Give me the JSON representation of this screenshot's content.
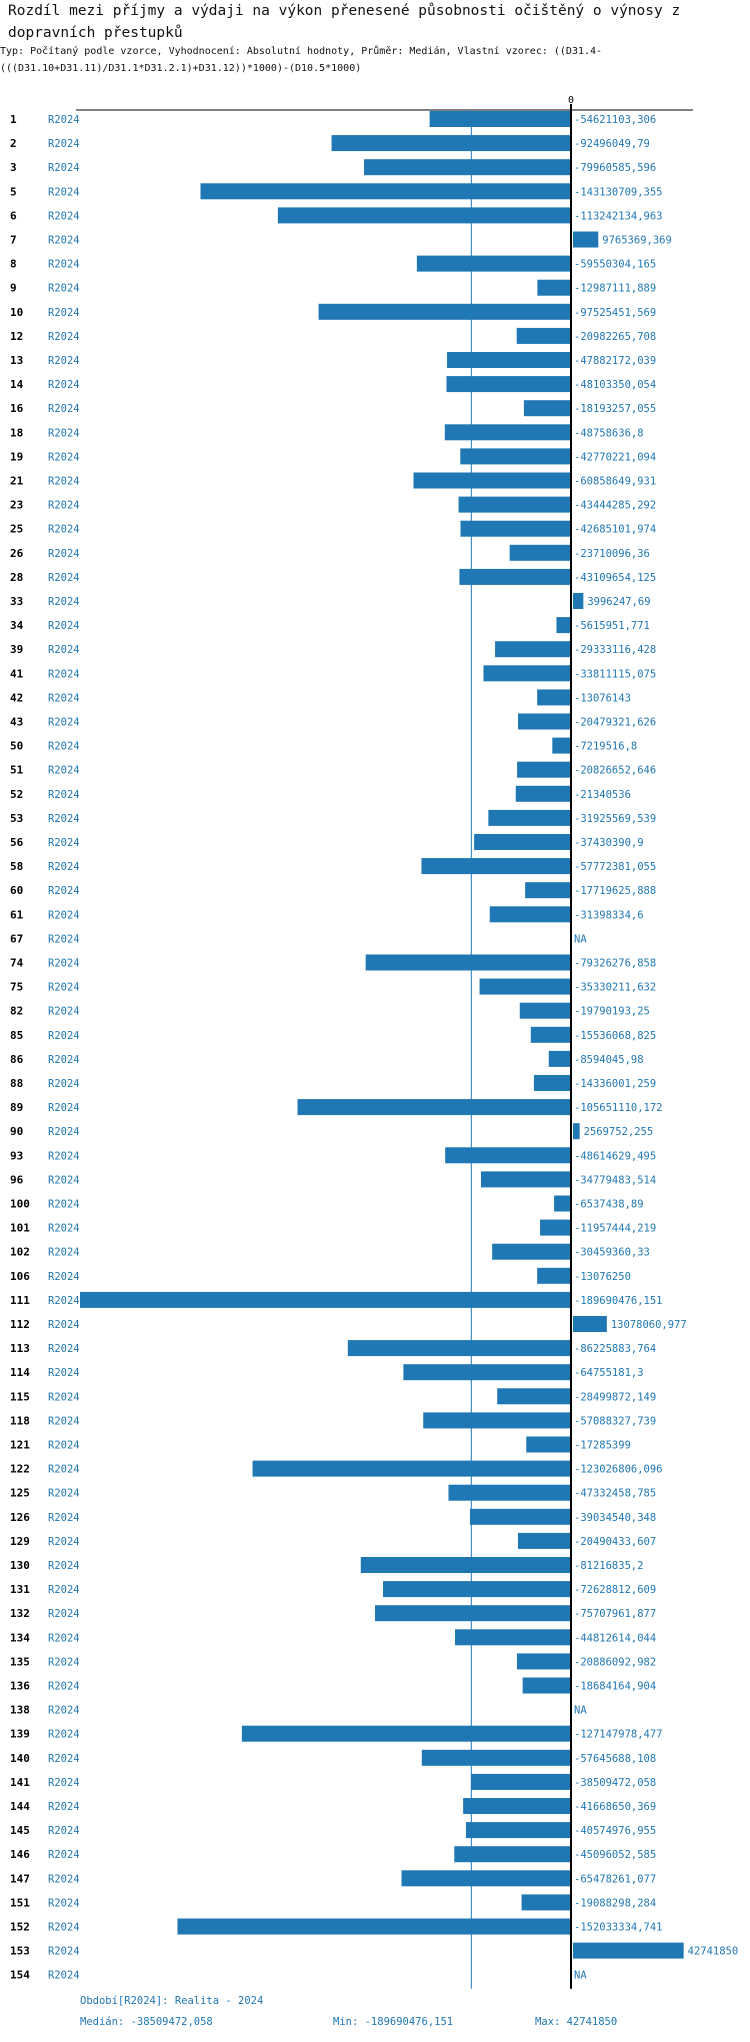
{
  "title": "Rozdíl mezi příjmy a výdaji na výkon přenesené působnosti očištěný o výnosy z dopravních přestupků",
  "subtitle": "Typ: Počítaný podle vzorce, Vyhodnocení: Absolutní hodnoty, Průměr: Medián, Vlastní vzorec: ((D31.4-(((D31.10+D31.11)/D31.1*D31.2.1)+D31.12))*1000)-(D10.5*1000)",
  "colors": {
    "bar": "#1f77b4",
    "text": "#1f77b4",
    "axis": "#000000"
  },
  "chart_data": {
    "type": "bar",
    "orientation": "horizontal",
    "zero_label": "0",
    "median_line": -38509472.058,
    "xlim": [
      -189690476.151,
      42741850
    ],
    "rows": [
      {
        "id": "1",
        "period": "R2024",
        "value": -54621103.306,
        "label": "-54621103,306"
      },
      {
        "id": "2",
        "period": "R2024",
        "value": -92496049.79,
        "label": "-92496049,79"
      },
      {
        "id": "3",
        "period": "R2024",
        "value": -79960585.596,
        "label": "-79960585,596"
      },
      {
        "id": "5",
        "period": "R2024",
        "value": -143130709.355,
        "label": "-143130709,355"
      },
      {
        "id": "6",
        "period": "R2024",
        "value": -113242134.963,
        "label": "-113242134,963"
      },
      {
        "id": "7",
        "period": "R2024",
        "value": 9765369.369,
        "label": "9765369,369"
      },
      {
        "id": "8",
        "period": "R2024",
        "value": -59550304.165,
        "label": "-59550304,165"
      },
      {
        "id": "9",
        "period": "R2024",
        "value": -12987111.889,
        "label": "-12987111,889"
      },
      {
        "id": "10",
        "period": "R2024",
        "value": -97525451.569,
        "label": "-97525451,569"
      },
      {
        "id": "12",
        "period": "R2024",
        "value": -20982265.708,
        "label": "-20982265,708"
      },
      {
        "id": "13",
        "period": "R2024",
        "value": -47882172.039,
        "label": "-47882172,039"
      },
      {
        "id": "14",
        "period": "R2024",
        "value": -48103350.054,
        "label": "-48103350,054"
      },
      {
        "id": "16",
        "period": "R2024",
        "value": -18193257.055,
        "label": "-18193257,055"
      },
      {
        "id": "18",
        "period": "R2024",
        "value": -48758636.8,
        "label": "-48758636,8"
      },
      {
        "id": "19",
        "period": "R2024",
        "value": -42770221.094,
        "label": "-42770221,094"
      },
      {
        "id": "21",
        "period": "R2024",
        "value": -60858649.931,
        "label": "-60858649,931"
      },
      {
        "id": "23",
        "period": "R2024",
        "value": -43444285.292,
        "label": "-43444285,292"
      },
      {
        "id": "25",
        "period": "R2024",
        "value": -42685101.974,
        "label": "-42685101,974"
      },
      {
        "id": "26",
        "period": "R2024",
        "value": -23710096.36,
        "label": "-23710096,36"
      },
      {
        "id": "28",
        "period": "R2024",
        "value": -43109654.125,
        "label": "-43109654,125"
      },
      {
        "id": "33",
        "period": "R2024",
        "value": 3996247.69,
        "label": "3996247,69"
      },
      {
        "id": "34",
        "period": "R2024",
        "value": -5615951.771,
        "label": "-5615951,771"
      },
      {
        "id": "39",
        "period": "R2024",
        "value": -29333116.428,
        "label": "-29333116,428"
      },
      {
        "id": "41",
        "period": "R2024",
        "value": -33811115.075,
        "label": "-33811115,075"
      },
      {
        "id": "42",
        "period": "R2024",
        "value": -13076143,
        "label": "-13076143"
      },
      {
        "id": "43",
        "period": "R2024",
        "value": -20479321.626,
        "label": "-20479321,626"
      },
      {
        "id": "50",
        "period": "R2024",
        "value": -7219516.8,
        "label": "-7219516,8"
      },
      {
        "id": "51",
        "period": "R2024",
        "value": -20826652.646,
        "label": "-20826652,646"
      },
      {
        "id": "52",
        "period": "R2024",
        "value": -21340536,
        "label": "-21340536"
      },
      {
        "id": "53",
        "period": "R2024",
        "value": -31925569.539,
        "label": "-31925569,539"
      },
      {
        "id": "56",
        "period": "R2024",
        "value": -37430390.9,
        "label": "-37430390,9"
      },
      {
        "id": "58",
        "period": "R2024",
        "value": -57772381.055,
        "label": "-57772381,055"
      },
      {
        "id": "60",
        "period": "R2024",
        "value": -17719625.888,
        "label": "-17719625,888"
      },
      {
        "id": "61",
        "period": "R2024",
        "value": -31398334.6,
        "label": "-31398334,6"
      },
      {
        "id": "67",
        "period": "R2024",
        "value": null,
        "label": "NA"
      },
      {
        "id": "74",
        "period": "R2024",
        "value": -79326276.858,
        "label": "-79326276,858"
      },
      {
        "id": "75",
        "period": "R2024",
        "value": -35330211.632,
        "label": "-35330211,632"
      },
      {
        "id": "82",
        "period": "R2024",
        "value": -19790193.25,
        "label": "-19790193,25"
      },
      {
        "id": "85",
        "period": "R2024",
        "value": -15536068.825,
        "label": "-15536068,825"
      },
      {
        "id": "86",
        "period": "R2024",
        "value": -8594045.98,
        "label": "-8594045,98"
      },
      {
        "id": "88",
        "period": "R2024",
        "value": -14336001.259,
        "label": "-14336001,259"
      },
      {
        "id": "89",
        "period": "R2024",
        "value": -105651110.172,
        "label": "-105651110,172"
      },
      {
        "id": "90",
        "period": "R2024",
        "value": 2569752.255,
        "label": "2569752,255"
      },
      {
        "id": "93",
        "period": "R2024",
        "value": -48614629.495,
        "label": "-48614629,495"
      },
      {
        "id": "96",
        "period": "R2024",
        "value": -34779483.514,
        "label": "-34779483,514"
      },
      {
        "id": "100",
        "period": "R2024",
        "value": -6537438.89,
        "label": "-6537438,89"
      },
      {
        "id": "101",
        "period": "R2024",
        "value": -11957444.219,
        "label": "-11957444,219"
      },
      {
        "id": "102",
        "period": "R2024",
        "value": -30459360.33,
        "label": "-30459360,33"
      },
      {
        "id": "106",
        "period": "R2024",
        "value": -13076250,
        "label": "-13076250"
      },
      {
        "id": "111",
        "period": "R2024",
        "value": -189690476.151,
        "label": "-189690476,151"
      },
      {
        "id": "112",
        "period": "R2024",
        "value": 13078060.977,
        "label": "13078060,977"
      },
      {
        "id": "113",
        "period": "R2024",
        "value": -86225883.764,
        "label": "-86225883,764"
      },
      {
        "id": "114",
        "period": "R2024",
        "value": -64755181.3,
        "label": "-64755181,3"
      },
      {
        "id": "115",
        "period": "R2024",
        "value": -28499872.149,
        "label": "-28499872,149"
      },
      {
        "id": "118",
        "period": "R2024",
        "value": -57088327.739,
        "label": "-57088327,739"
      },
      {
        "id": "121",
        "period": "R2024",
        "value": -17285399,
        "label": "-17285399"
      },
      {
        "id": "122",
        "period": "R2024",
        "value": -123026806.096,
        "label": "-123026806,096"
      },
      {
        "id": "125",
        "period": "R2024",
        "value": -47332458.785,
        "label": "-47332458,785"
      },
      {
        "id": "126",
        "period": "R2024",
        "value": -39034540.348,
        "label": "-39034540,348"
      },
      {
        "id": "129",
        "period": "R2024",
        "value": -20490433.607,
        "label": "-20490433,607"
      },
      {
        "id": "130",
        "period": "R2024",
        "value": -81216835.2,
        "label": "-81216835,2"
      },
      {
        "id": "131",
        "period": "R2024",
        "value": -72628812.609,
        "label": "-72628812,609"
      },
      {
        "id": "132",
        "period": "R2024",
        "value": -75707961.877,
        "label": "-75707961,877"
      },
      {
        "id": "134",
        "period": "R2024",
        "value": -44812614.044,
        "label": "-44812614,044"
      },
      {
        "id": "135",
        "period": "R2024",
        "value": -20886092.982,
        "label": "-20886092,982"
      },
      {
        "id": "136",
        "period": "R2024",
        "value": -18684164.904,
        "label": "-18684164,904"
      },
      {
        "id": "138",
        "period": "R2024",
        "value": null,
        "label": "NA"
      },
      {
        "id": "139",
        "period": "R2024",
        "value": -127147978.477,
        "label": "-127147978,477"
      },
      {
        "id": "140",
        "period": "R2024",
        "value": -57645688.108,
        "label": "-57645688,108"
      },
      {
        "id": "141",
        "period": "R2024",
        "value": -38509472.058,
        "label": "-38509472,058"
      },
      {
        "id": "144",
        "period": "R2024",
        "value": -41668650.369,
        "label": "-41668650,369"
      },
      {
        "id": "145",
        "period": "R2024",
        "value": -40574976.955,
        "label": "-40574976,955"
      },
      {
        "id": "146",
        "period": "R2024",
        "value": -45096052.585,
        "label": "-45096052,585"
      },
      {
        "id": "147",
        "period": "R2024",
        "value": -65478261.077,
        "label": "-65478261,077"
      },
      {
        "id": "151",
        "period": "R2024",
        "value": -19088298.284,
        "label": "-19088298,284"
      },
      {
        "id": "152",
        "period": "R2024",
        "value": -152033334.741,
        "label": "-152033334,741"
      },
      {
        "id": "153",
        "period": "R2024",
        "value": 42741850,
        "label": "42741850"
      },
      {
        "id": "154",
        "period": "R2024",
        "value": null,
        "label": "NA"
      }
    ]
  },
  "footer": {
    "period": "Období[R2024]: Realita - 2024",
    "median": "Medián: -38509472,058",
    "min": "Min: -189690476,151",
    "max": "Max: 42741850"
  }
}
